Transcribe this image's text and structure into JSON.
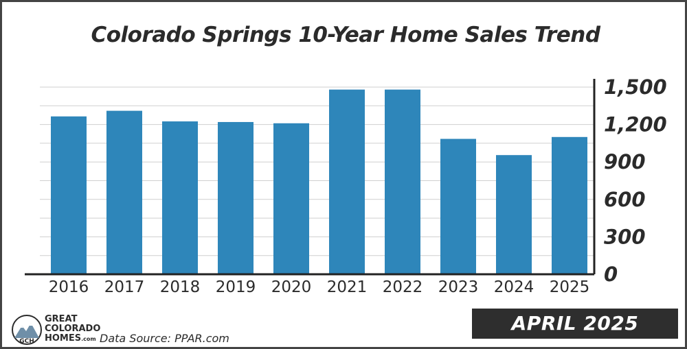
{
  "chart_data": {
    "type": "bar",
    "title": "Colorado Springs 10-Year Home Sales Trend",
    "categories": [
      "2016",
      "2017",
      "2018",
      "2019",
      "2020",
      "2021",
      "2022",
      "2023",
      "2024",
      "2025"
    ],
    "values": [
      1265,
      1310,
      1225,
      1220,
      1210,
      1480,
      1480,
      1085,
      955,
      1100
    ],
    "ylim": [
      0,
      1500
    ],
    "yticks": [
      0,
      300,
      600,
      900,
      1200,
      1500
    ],
    "ytick_labels": [
      "0",
      "300",
      "600",
      "900",
      "1,200",
      "1,500"
    ],
    "y_axis_side": "right",
    "grid": true,
    "bar_color": "#2e86ba",
    "xlabel": "",
    "ylabel": ""
  },
  "footer": {
    "logo_lines": [
      "GREAT",
      "COLORADO",
      "HOMES"
    ],
    "logo_suffix": ".com",
    "logo_badge": "GCH",
    "source": "Data Source: PPAR.com",
    "date_badge": "APRIL 2025"
  }
}
